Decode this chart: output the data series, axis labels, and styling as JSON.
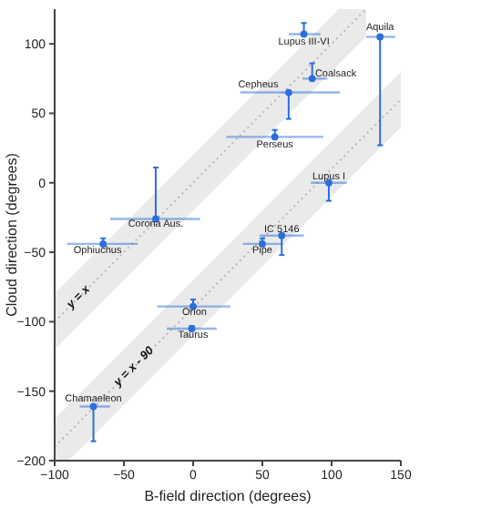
{
  "chart_data": {
    "type": "scatter",
    "xlabel": "B-field direction (degrees)",
    "ylabel": "Cloud direction (degrees)",
    "xlim": [
      -100,
      150
    ],
    "xticks": [
      -100,
      -50,
      0,
      50,
      100,
      150
    ],
    "ylim": [
      -200,
      125
    ],
    "yticks": [
      -200,
      -150,
      -100,
      -50,
      0,
      50,
      100
    ],
    "grid": false,
    "series": [
      {
        "type": "line",
        "name": "y = x",
        "color": "#b8b8b8",
        "line_style": "dotted",
        "marker": "none",
        "x": [
          -100,
          105,
          125
        ],
        "values": [
          -100,
          105,
          125
        ],
        "lower": [
          -120,
          85,
          105
        ],
        "upper": [
          -80,
          125,
          125
        ]
      },
      {
        "type": "line",
        "name": "y = x - 90",
        "color": "#b8b8b8",
        "line_style": "dotted",
        "marker": "none",
        "x": [
          -100,
          -90,
          150
        ],
        "values": [
          -190,
          -180,
          60
        ],
        "lower": [
          -200,
          -200,
          40
        ],
        "upper": [
          -170,
          -160,
          80
        ]
      },
      {
        "color": "#2a6fdb",
        "marker": "circle",
        "x": [
          80,
          135,
          86,
          69,
          59,
          -27,
          98,
          64,
          50,
          -65,
          0,
          -1,
          -72
        ],
        "values": [
          107,
          105,
          75,
          65,
          33,
          -26,
          0,
          -38,
          -44,
          -44,
          -89,
          -105,
          -161
        ],
        "xerrors": [
          [
            69,
            92
          ],
          [
            125,
            146
          ],
          [
            79,
            97
          ],
          [
            34,
            106
          ],
          [
            24,
            94
          ],
          [
            -60,
            5
          ],
          [
            85,
            111
          ],
          [
            48,
            80
          ],
          [
            36,
            64
          ],
          [
            -91,
            -40
          ],
          [
            -26,
            27
          ],
          [
            -19,
            17
          ],
          [
            -82,
            -60
          ]
        ],
        "errors": [
          [
            107,
            115
          ],
          [
            27,
            105
          ],
          [
            75,
            86
          ],
          [
            46,
            65
          ],
          [
            33,
            38
          ],
          [
            -26,
            11
          ],
          [
            -13,
            0
          ],
          [
            -52,
            -38
          ],
          [
            -44,
            -40
          ],
          [
            -44,
            -40
          ],
          [
            -89,
            -84
          ],
          [
            -105,
            -103
          ],
          [
            -186,
            -161
          ]
        ]
      }
    ],
    "annotations": [
      {
        "text": "Lupus III-VI",
        "x": 80,
        "y": 101
      },
      {
        "text": "Aquila",
        "x": 135,
        "y": 111
      },
      {
        "text": "Coalsack",
        "x": 103,
        "y": 78
      },
      {
        "text": "Cepheus",
        "x": 47,
        "y": 70
      },
      {
        "text": "Perseus",
        "x": 59,
        "y": 27
      },
      {
        "text": "Corona Aus.",
        "x": -27,
        "y": -30
      },
      {
        "text": "Lupus I",
        "x": 98,
        "y": 4
      },
      {
        "text": "IC 5146",
        "x": 64,
        "y": -34
      },
      {
        "text": "Pipe",
        "x": 50,
        "y": -49
      },
      {
        "text": "Ophiuchus",
        "x": -69,
        "y": -49
      },
      {
        "text": "Orion",
        "x": 1,
        "y": -94
      },
      {
        "text": "Taurus",
        "x": 0,
        "y": -110
      },
      {
        "text": "Chamaeleon",
        "x": -72,
        "y": -156
      }
    ]
  }
}
